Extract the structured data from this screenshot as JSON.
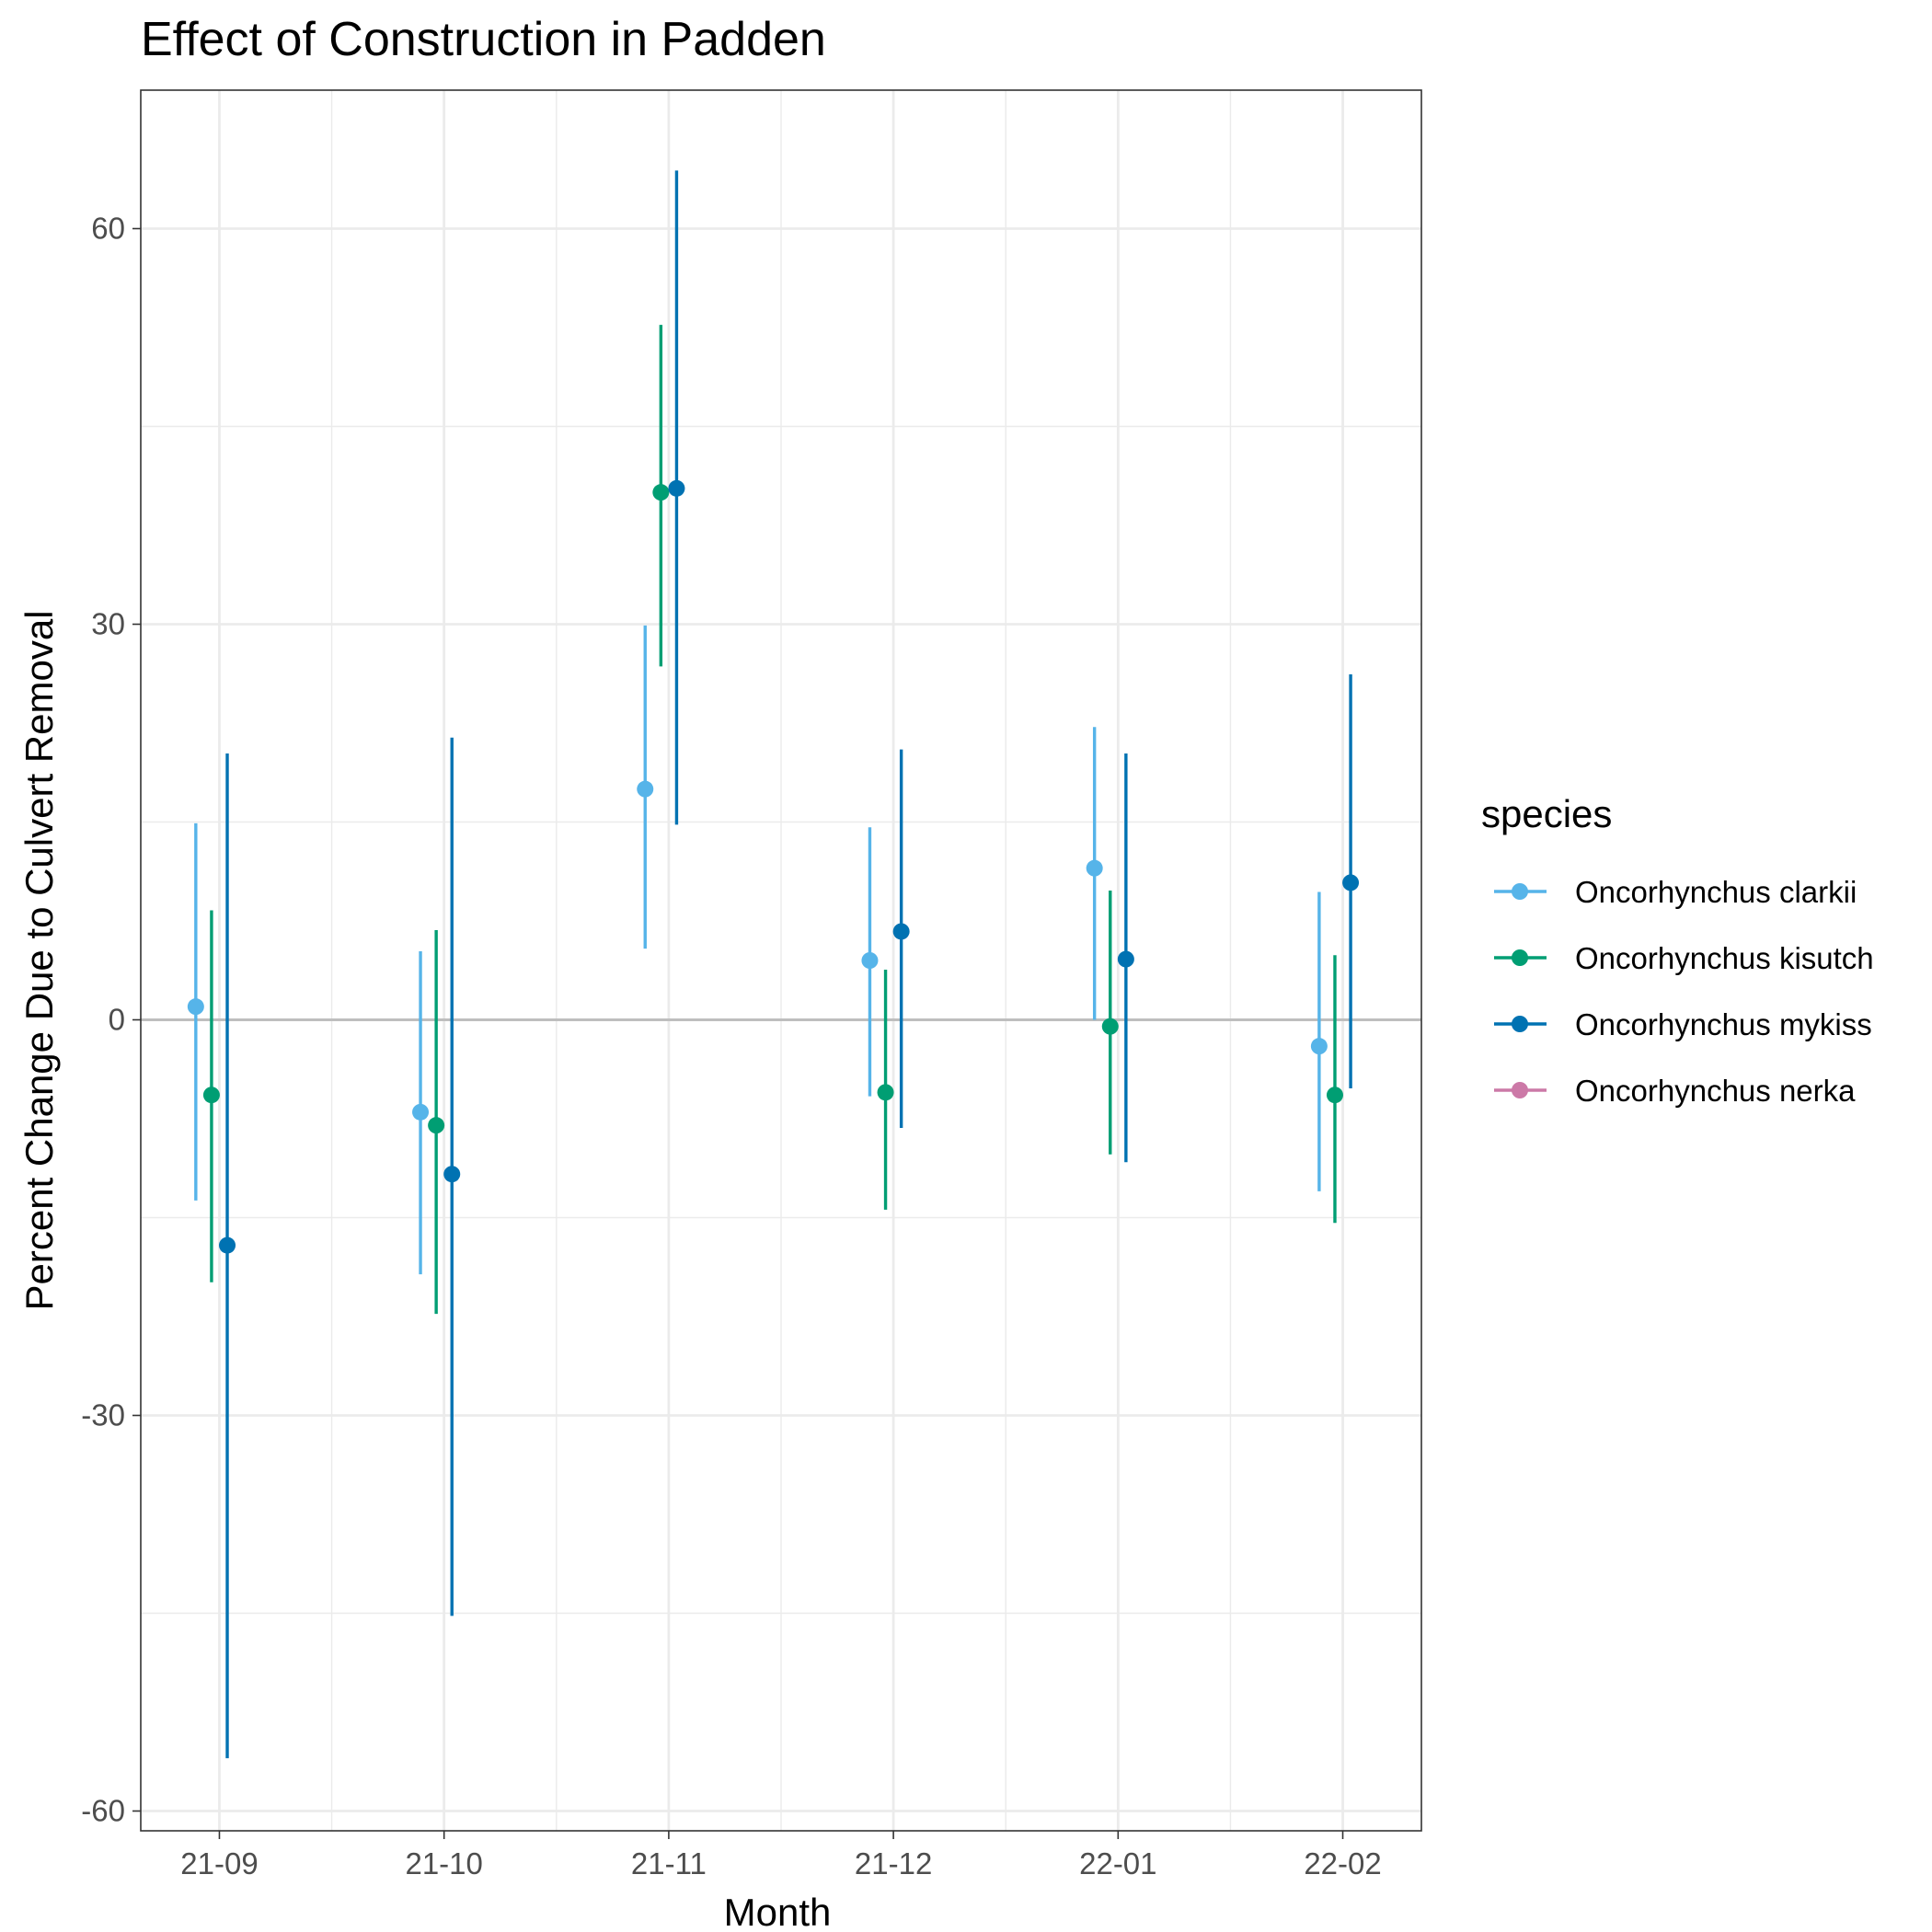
{
  "chart_data": {
    "type": "scatter",
    "title": "Effect of Construction in Padden",
    "xlabel": "Month",
    "ylabel": "Percent Change Due to Culvert Removal",
    "categories": [
      "21-09",
      "21-10",
      "21-11",
      "21-12",
      "22-01",
      "22-02"
    ],
    "y_ticks": [
      -60,
      -30,
      0,
      30,
      60
    ],
    "y_tick_labels": [
      "-60",
      "-30",
      "0",
      "30",
      "60"
    ],
    "ylim": [
      -61.5,
      70.5
    ],
    "grid": true,
    "reference_line_y": 0,
    "legend": {
      "title": "species",
      "position": "right"
    },
    "series": [
      {
        "name": "Oncorhynchus clarkii",
        "color": "#56B4E9",
        "values": [
          1,
          -7,
          17.5,
          4.5,
          11.5,
          -2
        ],
        "lower": [
          -13.7,
          -19.3,
          5.4,
          -5.8,
          0,
          -13
        ],
        "upper": [
          14.9,
          5.2,
          29.9,
          14.6,
          22.2,
          9.7
        ]
      },
      {
        "name": "Oncorhynchus kisutch",
        "color": "#009E73",
        "values": [
          -5.7,
          -8,
          40,
          -5.5,
          -0.5,
          -5.7
        ],
        "lower": [
          -19.9,
          -22.3,
          26.8,
          -14.4,
          -10.2,
          -15.4
        ],
        "upper": [
          8.3,
          6.8,
          52.7,
          3.8,
          9.8,
          4.9
        ]
      },
      {
        "name": "Oncorhynchus mykiss",
        "color": "#0072B2",
        "values": [
          -17.1,
          -11.7,
          40.3,
          6.7,
          4.6,
          10.4
        ],
        "lower": [
          -56,
          -45.2,
          14.8,
          -8.2,
          -10.8,
          -5.2
        ],
        "upper": [
          20.2,
          21.4,
          64.4,
          20.5,
          20.2,
          26.2
        ]
      },
      {
        "name": "Oncorhynchus nerka",
        "color": "#CC79A7",
        "values": [
          null,
          null,
          null,
          null,
          null,
          null
        ],
        "lower": [
          null,
          null,
          null,
          null,
          null,
          null
        ],
        "upper": [
          null,
          null,
          null,
          null,
          null,
          null
        ]
      }
    ]
  }
}
